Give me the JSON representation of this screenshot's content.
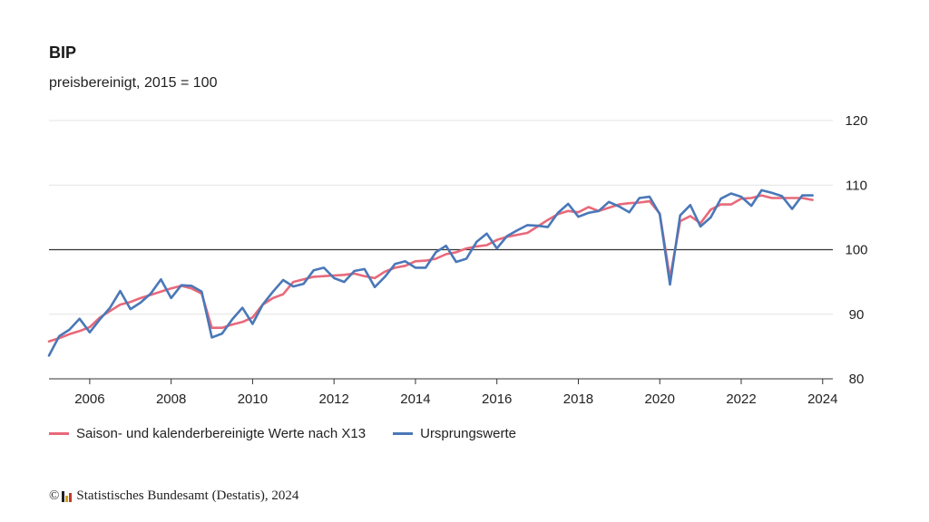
{
  "header": {
    "title": "BIP",
    "subtitle": "preisbereinigt, 2015 = 100"
  },
  "footer": {
    "copyright_symbol": "©",
    "source": "Statistisches Bundesamt (Destatis), 2024"
  },
  "colors": {
    "seasonal": "#e8697a",
    "original": "#4a78b8",
    "grid": "#e3e3e3",
    "baseline": "#333333"
  },
  "chart_data": {
    "type": "line",
    "title": "BIP",
    "subtitle": "preisbereinigt, 2015 = 100",
    "xlabel": "",
    "ylabel": "",
    "xlim": [
      2005.0,
      2024.25
    ],
    "ylim": [
      80,
      120
    ],
    "x_ticks": [
      "2006",
      "2008",
      "2010",
      "2012",
      "2014",
      "2016",
      "2018",
      "2020",
      "2022",
      "2024"
    ],
    "y_ticks": [
      "80",
      "90",
      "100",
      "110",
      "120"
    ],
    "y_axis_position": "right",
    "reference_line": 100,
    "grid": true,
    "legend": "bottom-left",
    "x": [
      "2005-Q1",
      "2005-Q2",
      "2005-Q3",
      "2005-Q4",
      "2006-Q1",
      "2006-Q2",
      "2006-Q3",
      "2006-Q4",
      "2007-Q1",
      "2007-Q2",
      "2007-Q3",
      "2007-Q4",
      "2008-Q1",
      "2008-Q2",
      "2008-Q3",
      "2008-Q4",
      "2009-Q1",
      "2009-Q2",
      "2009-Q3",
      "2009-Q4",
      "2010-Q1",
      "2010-Q2",
      "2010-Q3",
      "2010-Q4",
      "2011-Q1",
      "2011-Q2",
      "2011-Q3",
      "2011-Q4",
      "2012-Q1",
      "2012-Q2",
      "2012-Q3",
      "2012-Q4",
      "2013-Q1",
      "2013-Q2",
      "2013-Q3",
      "2013-Q4",
      "2014-Q1",
      "2014-Q2",
      "2014-Q3",
      "2014-Q4",
      "2015-Q1",
      "2015-Q2",
      "2015-Q3",
      "2015-Q4",
      "2016-Q1",
      "2016-Q2",
      "2016-Q3",
      "2016-Q4",
      "2017-Q1",
      "2017-Q2",
      "2017-Q3",
      "2017-Q4",
      "2018-Q1",
      "2018-Q2",
      "2018-Q3",
      "2018-Q4",
      "2019-Q1",
      "2019-Q2",
      "2019-Q3",
      "2019-Q4",
      "2020-Q1",
      "2020-Q2",
      "2020-Q3",
      "2020-Q4",
      "2021-Q1",
      "2021-Q2",
      "2021-Q3",
      "2021-Q4",
      "2022-Q1",
      "2022-Q2",
      "2022-Q3",
      "2022-Q4",
      "2023-Q1",
      "2023-Q2",
      "2023-Q3",
      "2023-Q4"
    ],
    "series": [
      {
        "name": "Saison- und kalenderbereinigte Werte nach X13",
        "color": "#e8697a",
        "values": [
          85.8,
          86.3,
          86.9,
          87.4,
          88.0,
          89.5,
          90.5,
          91.5,
          91.9,
          92.5,
          93.0,
          93.5,
          94.0,
          94.4,
          94.0,
          93.2,
          87.9,
          87.9,
          88.4,
          88.8,
          89.5,
          91.5,
          92.5,
          93.1,
          95.0,
          95.4,
          95.8,
          95.9,
          96.0,
          96.1,
          96.3,
          95.9,
          95.6,
          96.6,
          97.2,
          97.5,
          98.2,
          98.3,
          98.6,
          99.3,
          99.6,
          100.2,
          100.5,
          100.7,
          101.5,
          102.0,
          102.3,
          102.6,
          103.6,
          104.6,
          105.5,
          106.0,
          105.8,
          106.6,
          106.0,
          106.5,
          107.0,
          107.2,
          107.3,
          107.5,
          105.6,
          95.6,
          104.4,
          105.2,
          104.1,
          106.2,
          107.0,
          107.0,
          107.9,
          108.0,
          108.4,
          108.0,
          108.0,
          108.0,
          108.0,
          107.7
        ]
      },
      {
        "name": "Ursprungswerte",
        "color": "#4a78b8",
        "values": [
          83.6,
          86.6,
          87.6,
          89.3,
          87.2,
          89.2,
          91.0,
          93.6,
          90.8,
          91.8,
          93.2,
          95.4,
          92.5,
          94.5,
          94.4,
          93.5,
          86.4,
          87.0,
          89.2,
          91.0,
          88.5,
          91.5,
          93.5,
          95.3,
          94.3,
          94.7,
          96.8,
          97.2,
          95.6,
          95.0,
          96.7,
          97.0,
          94.2,
          95.8,
          97.8,
          98.2,
          97.2,
          97.2,
          99.6,
          100.6,
          98.1,
          98.6,
          101.2,
          102.5,
          100.2,
          102.1,
          103.0,
          103.8,
          103.7,
          103.5,
          105.7,
          107.1,
          105.1,
          105.7,
          106.0,
          107.4,
          106.7,
          105.8,
          108.0,
          108.2,
          105.5,
          94.6,
          105.3,
          106.9,
          103.6,
          105.0,
          107.9,
          108.7,
          108.2,
          106.8,
          109.2,
          108.8,
          108.3,
          106.3,
          108.4,
          108.4
        ]
      }
    ]
  }
}
